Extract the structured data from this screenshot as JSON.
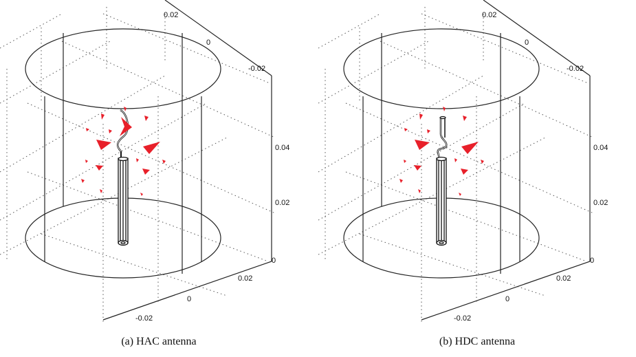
{
  "figures": [
    {
      "id": "a",
      "caption": "(a) HAC antenna",
      "variant": "HAC",
      "ticks": {
        "y_top_0": "0",
        "y_top_neg": "-0.02",
        "y_top_pos": "0.02",
        "z_004": "0.04",
        "z_002": "0.02",
        "z_0": "0",
        "x_002": "0.02",
        "x_0": "0",
        "x_neg": "-0.02"
      }
    },
    {
      "id": "b",
      "caption": "(b) HDC antenna",
      "variant": "HDC",
      "ticks": {
        "y_top_0": "0",
        "y_top_neg": "-0.02",
        "y_top_pos": "0.02",
        "z_004": "0.04",
        "z_002": "0.02",
        "z_0": "0",
        "x_002": "0.02",
        "x_0": "0",
        "x_neg": "-0.02"
      }
    }
  ],
  "colors": {
    "arrow": "#e8202a",
    "line": "#222222",
    "grid": "#444444"
  }
}
